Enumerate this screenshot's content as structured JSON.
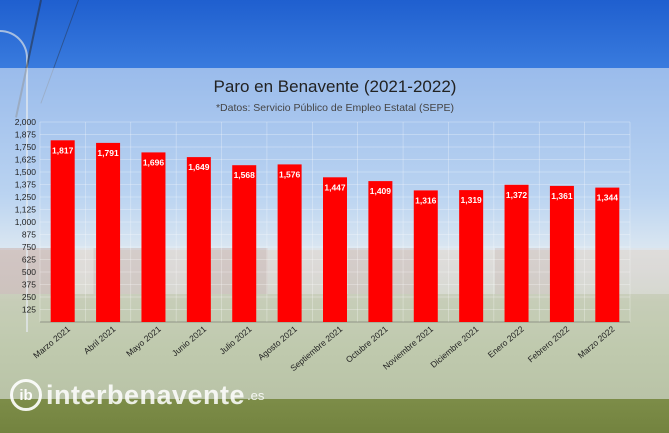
{
  "chart_data": {
    "type": "bar",
    "title": "Paro en Benavente (2021-2022)",
    "subtitle": "*Datos: Servicio Público de Empleo Estatal (SEPE)",
    "categories": [
      "Marzo 2021",
      "Abril 2021",
      "Mayo 2021",
      "Junio 2021",
      "Julio 2021",
      "Agosto 2021",
      "Septiembre 2021",
      "Octubre 2021",
      "Noviembre 2021",
      "Diciembre 2021",
      "Enero 2022",
      "Febrero 2022",
      "Marzo 2022"
    ],
    "values": [
      1817,
      1791,
      1696,
      1649,
      1568,
      1576,
      1447,
      1409,
      1316,
      1319,
      1372,
      1361,
      1344
    ],
    "value_labels": [
      "1,817",
      "1,791",
      "1,696",
      "1,649",
      "1,568",
      "1,576",
      "1,447",
      "1,409",
      "1,316",
      "1,319",
      "1,372",
      "1,361",
      "1,344"
    ],
    "yticks": [
      125,
      250,
      375,
      500,
      625,
      750,
      875,
      1000,
      1125,
      1250,
      1375,
      1500,
      1625,
      1750,
      1875,
      2000
    ],
    "ytick_labels": [
      "125",
      "250",
      "375",
      "500",
      "625",
      "750",
      "875",
      "1,000",
      "1,125",
      "1,250",
      "1,375",
      "1,500",
      "1,625",
      "1,750",
      "1,875",
      "2,000"
    ],
    "ylim": [
      0,
      2000
    ],
    "xlabel": "",
    "ylabel": "",
    "grid": true,
    "bar_color": "#ff0000"
  },
  "watermark": {
    "logo": "ib",
    "name": "interbenavente",
    "suffix": ".es"
  }
}
